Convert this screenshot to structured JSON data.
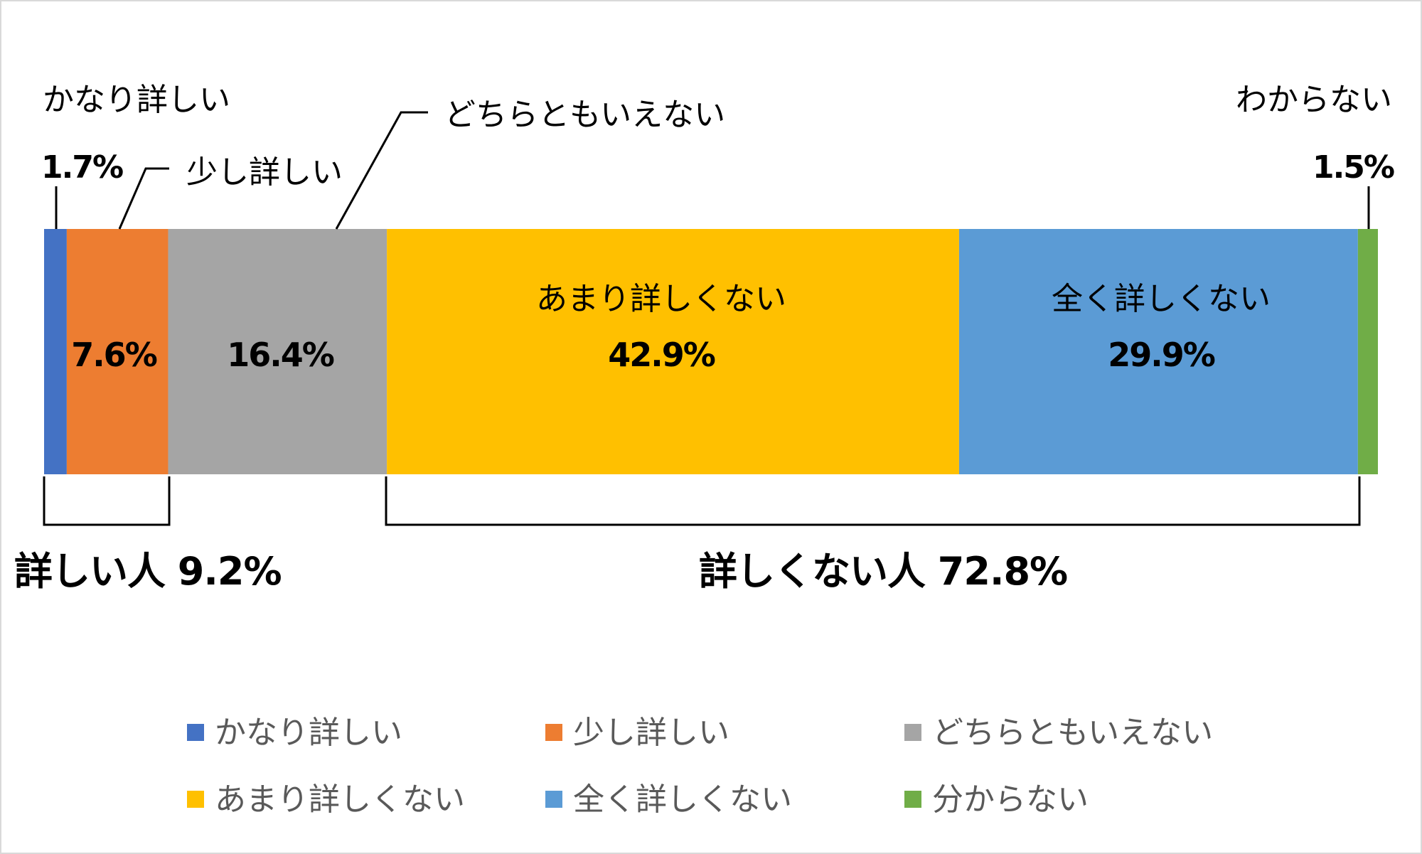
{
  "chart_data": {
    "type": "bar",
    "orientation": "horizontal-stacked-100",
    "categories": [
      "かなり詳しい",
      "少し詳しい",
      "どちらともいえない",
      "あまり詳しくない",
      "全く詳しくない",
      "分からない"
    ],
    "series": [
      {
        "name": "かなり詳しい",
        "value": 1.7,
        "label": "1.7%",
        "color": "#4472c4"
      },
      {
        "name": "少し詳しい",
        "value": 7.6,
        "label": "7.6%",
        "color": "#ed7d31"
      },
      {
        "name": "どちらともいえない",
        "value": 16.4,
        "label": "16.4%",
        "color": "#a5a5a5"
      },
      {
        "name": "あまり詳しくない",
        "value": 42.9,
        "label": "42.9%",
        "color": "#ffc000"
      },
      {
        "name": "全く詳しくない",
        "value": 29.9,
        "label": "29.9%",
        "color": "#5b9bd5"
      },
      {
        "name": "分からない",
        "value": 1.5,
        "label": "1.5%",
        "color": "#70ad47"
      }
    ],
    "annotations": {
      "kanari": "かなり詳しい",
      "sukoshi": "少し詳しい",
      "dochira": "どちらともいえない",
      "amari": "あまり詳しくない",
      "mattaku": "全く詳しくない",
      "wakaranai": "わからない"
    },
    "brackets": [
      {
        "label": "詳しい人 9.2%",
        "from": 0,
        "to": 1
      },
      {
        "label": "詳しくない人 72.8%",
        "from": 3,
        "to": 4
      }
    ],
    "legend": {
      "position": "bottom",
      "items": [
        "かなり詳しい",
        "少し詳しい",
        "どちらともいえない",
        "あまり詳しくない",
        "全く詳しくない",
        "分からない"
      ]
    }
  }
}
